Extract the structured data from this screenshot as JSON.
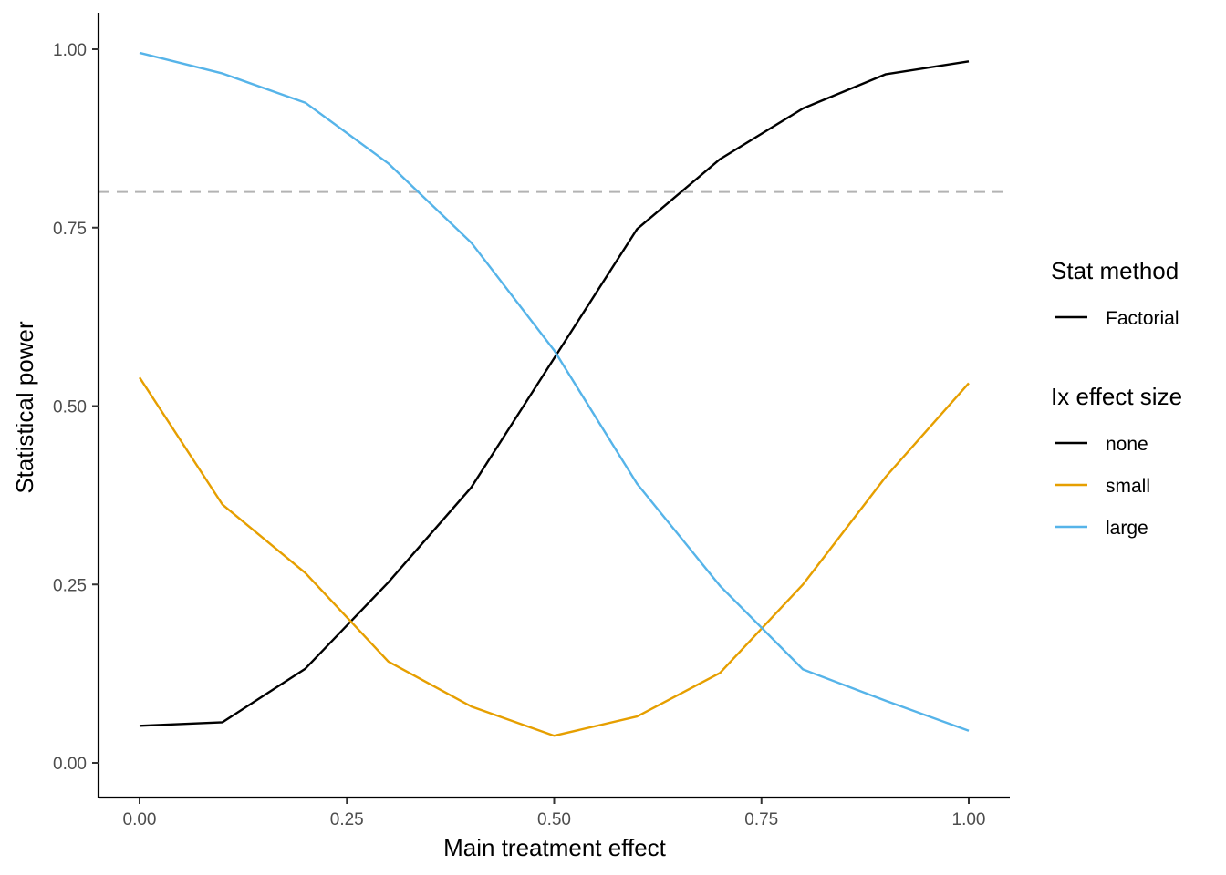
{
  "chart_data": {
    "type": "line",
    "xlabel": "Main treatment effect",
    "ylabel": "Statistical power",
    "xlim": [
      0,
      1
    ],
    "ylim": [
      0,
      1
    ],
    "x_ticks": [
      0,
      0.25,
      0.5,
      0.75,
      1
    ],
    "x_tick_labels": [
      "0.00",
      "0.25",
      "0.50",
      "0.75",
      "1.00"
    ],
    "y_ticks": [
      0,
      0.25,
      0.5,
      0.75,
      1
    ],
    "y_tick_labels": [
      "0.00",
      "0.25",
      "0.50",
      "0.75",
      "1.00"
    ],
    "grid": false,
    "reference_line": {
      "y": 0.8,
      "color": "#b3b3b3",
      "style": "dashed"
    },
    "x": [
      0,
      0.1,
      0.2,
      0.3,
      0.4,
      0.5,
      0.6,
      0.7,
      0.8,
      0.9,
      1.0
    ],
    "series": [
      {
        "name": "none",
        "color": "#000000",
        "values": [
          0.052,
          0.057,
          0.132,
          0.253,
          0.386,
          0.567,
          0.748,
          0.846,
          0.917,
          0.965,
          0.983
        ]
      },
      {
        "name": "small",
        "color": "#E69F00",
        "values": [
          0.54,
          0.362,
          0.266,
          0.142,
          0.079,
          0.038,
          0.065,
          0.126,
          0.25,
          0.401,
          0.532
        ]
      },
      {
        "name": "large",
        "color": "#56B4E9",
        "values": [
          0.995,
          0.966,
          0.925,
          0.84,
          0.729,
          0.578,
          0.391,
          0.248,
          0.131,
          0.087,
          0.045
        ]
      }
    ],
    "legend": {
      "position": "right",
      "groups": [
        {
          "title": "Stat method",
          "items": [
            {
              "label": "Factorial",
              "color": "#000000"
            }
          ]
        },
        {
          "title": "Ix effect size",
          "items": [
            {
              "label": "none",
              "color": "#000000"
            },
            {
              "label": "small",
              "color": "#E69F00"
            },
            {
              "label": "large",
              "color": "#56B4E9"
            }
          ]
        }
      ]
    }
  }
}
